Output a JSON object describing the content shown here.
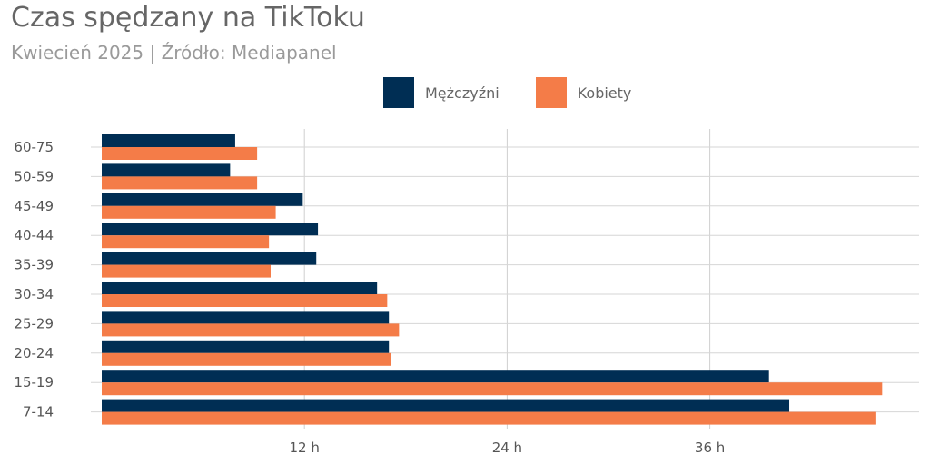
{
  "chart_data": {
    "type": "bar",
    "orientation": "horizontal",
    "title": "Czas spędzany na TikToku",
    "subtitle": "Kwiecień 2025 | Źródło: Mediapanel",
    "categories": [
      "60-75",
      "50-59",
      "45-49",
      "40-44",
      "35-39",
      "30-34",
      "25-29",
      "20-24",
      "15-19",
      "7-14"
    ],
    "series": [
      {
        "name": "Mężczyźni",
        "color": "#002e54",
        "values": [
          7.9,
          7.6,
          11.9,
          12.8,
          12.7,
          16.3,
          17.0,
          17.0,
          39.5,
          40.7
        ]
      },
      {
        "name": "Kobiety",
        "color": "#f47c48",
        "values": [
          9.2,
          9.2,
          10.3,
          9.9,
          10.0,
          16.9,
          17.6,
          17.1,
          46.2,
          45.8
        ]
      }
    ],
    "xticks": [
      12,
      24,
      36
    ],
    "xtick_labels": [
      "12 h",
      "24 h",
      "36 h"
    ],
    "xlim": [
      0,
      47
    ],
    "legend_position": "top",
    "grid": true
  }
}
